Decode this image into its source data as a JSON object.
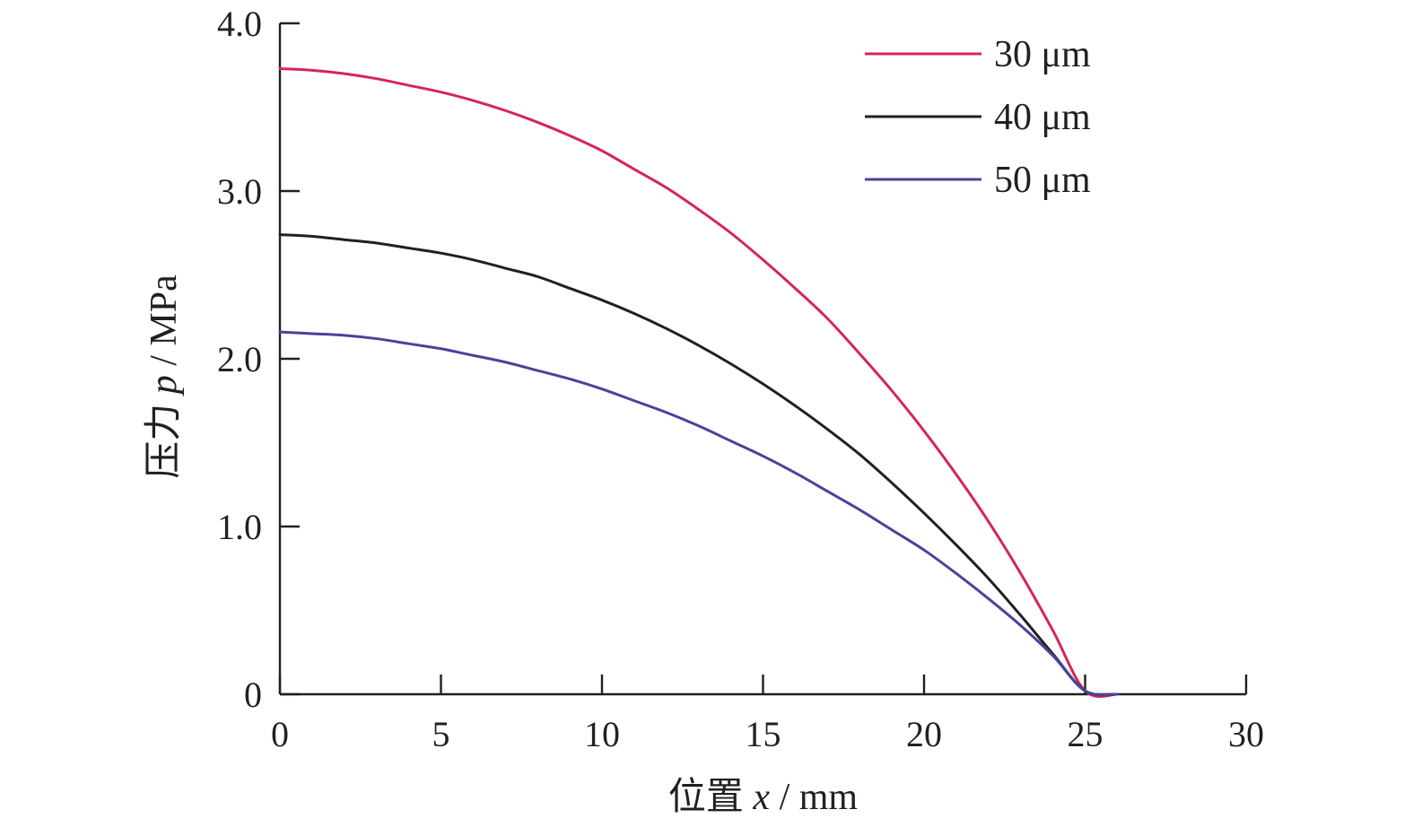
{
  "chart_data": {
    "type": "line",
    "xlabel": {
      "main": "位置 ",
      "var": "x",
      "unit": " / mm"
    },
    "ylabel": {
      "main": "压力 ",
      "var": "p",
      "unit": " / MPa"
    },
    "xlim": [
      0,
      30
    ],
    "ylim": [
      0,
      4
    ],
    "x_ticks": [
      0,
      5,
      10,
      15,
      20,
      25,
      30
    ],
    "x_tick_labels": [
      "0",
      "5",
      "10",
      "15",
      "20",
      "25",
      "30"
    ],
    "y_ticks": [
      0,
      1,
      2,
      3,
      4
    ],
    "y_tick_labels": [
      "0",
      "1.0",
      "2.0",
      "3.0",
      "4.0"
    ],
    "grid": false,
    "legend_position": "top-right",
    "series": [
      {
        "name": "30 μm",
        "color": "#d6245a",
        "x": [
          0,
          1,
          2,
          3,
          4,
          5,
          6,
          7,
          8,
          9,
          10,
          11,
          12,
          13,
          14,
          15,
          16,
          17,
          18,
          19,
          20,
          21,
          22,
          23,
          24,
          25,
          26
        ],
        "y": [
          3.73,
          3.72,
          3.7,
          3.67,
          3.63,
          3.59,
          3.54,
          3.48,
          3.41,
          3.33,
          3.24,
          3.13,
          3.02,
          2.89,
          2.75,
          2.59,
          2.42,
          2.24,
          2.03,
          1.81,
          1.57,
          1.31,
          1.03,
          0.72,
          0.38,
          0.02,
          0.0
        ]
      },
      {
        "name": "40 μm",
        "color": "#231f20",
        "x": [
          0,
          1,
          2,
          3,
          4,
          5,
          6,
          7,
          8,
          9,
          10,
          11,
          12,
          13,
          14,
          15,
          16,
          17,
          18,
          19,
          20,
          21,
          22,
          23,
          24,
          25,
          26
        ],
        "y": [
          2.74,
          2.73,
          2.71,
          2.69,
          2.66,
          2.63,
          2.59,
          2.54,
          2.49,
          2.42,
          2.35,
          2.27,
          2.18,
          2.08,
          1.97,
          1.85,
          1.72,
          1.58,
          1.43,
          1.26,
          1.08,
          0.89,
          0.69,
          0.47,
          0.24,
          0.02,
          0.0
        ]
      },
      {
        "name": "50 μm",
        "color": "#46449a",
        "x": [
          0,
          1,
          2,
          3,
          4,
          5,
          6,
          7,
          8,
          9,
          10,
          11,
          12,
          13,
          14,
          15,
          16,
          17,
          18,
          19,
          20,
          21,
          22,
          23,
          24,
          25,
          26
        ],
        "y": [
          2.16,
          2.15,
          2.14,
          2.12,
          2.09,
          2.06,
          2.02,
          1.98,
          1.93,
          1.88,
          1.82,
          1.75,
          1.68,
          1.6,
          1.51,
          1.42,
          1.32,
          1.21,
          1.1,
          0.98,
          0.86,
          0.72,
          0.57,
          0.41,
          0.23,
          0.02,
          0.0
        ]
      }
    ]
  }
}
